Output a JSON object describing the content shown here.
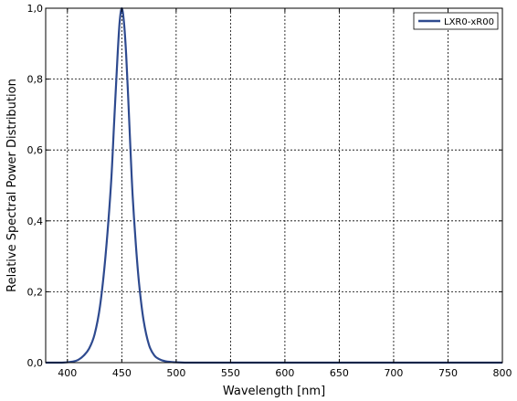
{
  "chart_data": {
    "type": "line",
    "title": "",
    "xlabel": "Wavelength [nm]",
    "ylabel": "Relative Spectral Power Distribution",
    "xlim": [
      380,
      800
    ],
    "ylim": [
      0.0,
      1.0
    ],
    "xticks": [
      400,
      450,
      500,
      550,
      600,
      650,
      700,
      750,
      800
    ],
    "yticks": [
      0.0,
      0.2,
      0.4,
      0.6,
      0.8,
      1.0
    ],
    "xtick_labels": [
      "400",
      "450",
      "500",
      "550",
      "600",
      "650",
      "700",
      "750",
      "800"
    ],
    "ytick_labels": [
      "0,0",
      "0,2",
      "0,4",
      "0,6",
      "0,8",
      "1,0"
    ],
    "grid": true,
    "legend_position": "top-right",
    "series": [
      {
        "name": "LXR0-xR00",
        "color": "#2e4a8f",
        "x": [
          380,
          395,
          405,
          410,
          415,
          420,
          425,
          430,
          435,
          440,
          443,
          446,
          448,
          450,
          452,
          454,
          456,
          458,
          460,
          463,
          466,
          470,
          475,
          480,
          485,
          490,
          495,
          500,
          510,
          520,
          540,
          600,
          700,
          800
        ],
        "y": [
          0.0,
          0.0,
          0.003,
          0.008,
          0.02,
          0.04,
          0.08,
          0.16,
          0.3,
          0.5,
          0.68,
          0.86,
          0.96,
          1.0,
          0.96,
          0.87,
          0.74,
          0.6,
          0.47,
          0.33,
          0.22,
          0.12,
          0.05,
          0.02,
          0.009,
          0.004,
          0.002,
          0.001,
          0.0,
          0.0,
          0.0,
          0.0,
          0.0,
          0.0
        ]
      }
    ]
  }
}
